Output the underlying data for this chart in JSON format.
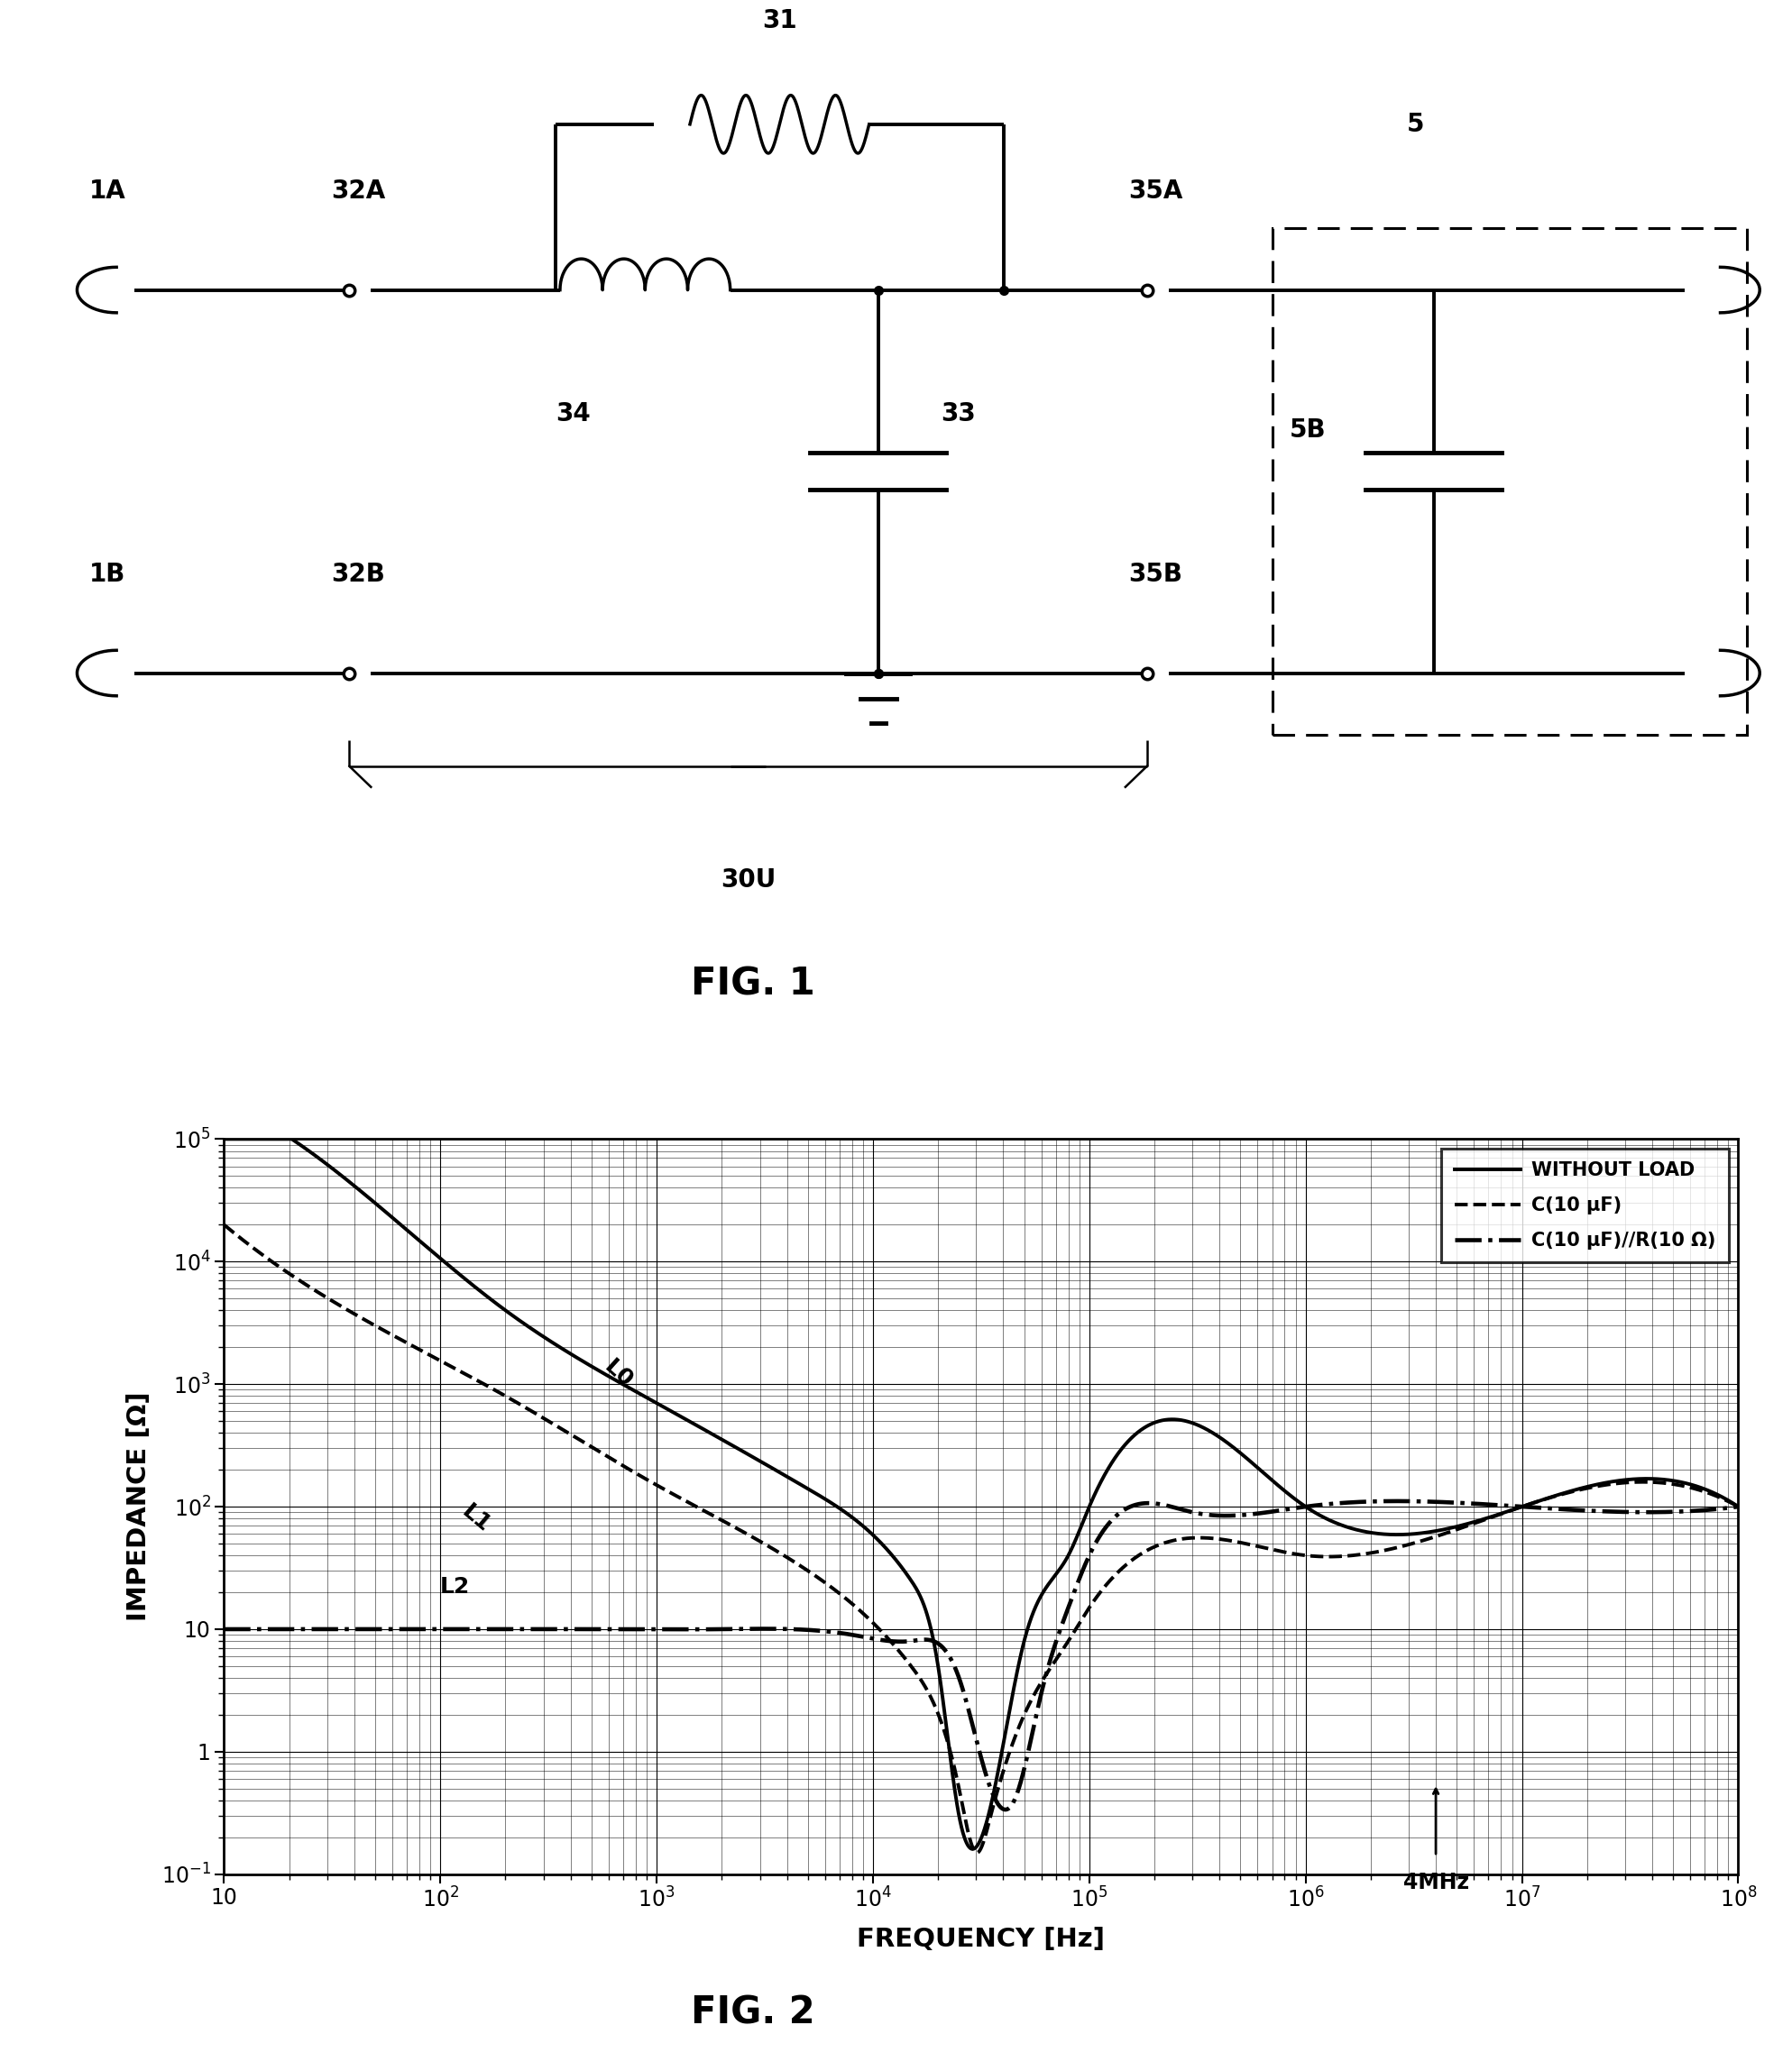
{
  "fig1_label": "FIG. 1",
  "fig2_label": "FIG. 2",
  "graph_xlabel": "FREQUENCY [Hz]",
  "graph_ylabel": "IMPEDANCE [Ω]",
  "xmin": 10,
  "xmax": 100000000.0,
  "ymin": 0.1,
  "ymax": 100000.0,
  "legend_entries": [
    "WITHOUT LOAD",
    "C(10 μF)",
    "C(10 μF)//R(10 Ω)"
  ],
  "annotation_4mhz": "4MHz",
  "ytick_labels": [
    "10⁻¹",
    "1",
    "10",
    "10²",
    "10³",
    "10⁴",
    "10⁵"
  ],
  "xtick_labels": [
    "10",
    "10²",
    "10³",
    "10⁴",
    "10⁵",
    "10⁶",
    "10⁷",
    "10⁸"
  ]
}
